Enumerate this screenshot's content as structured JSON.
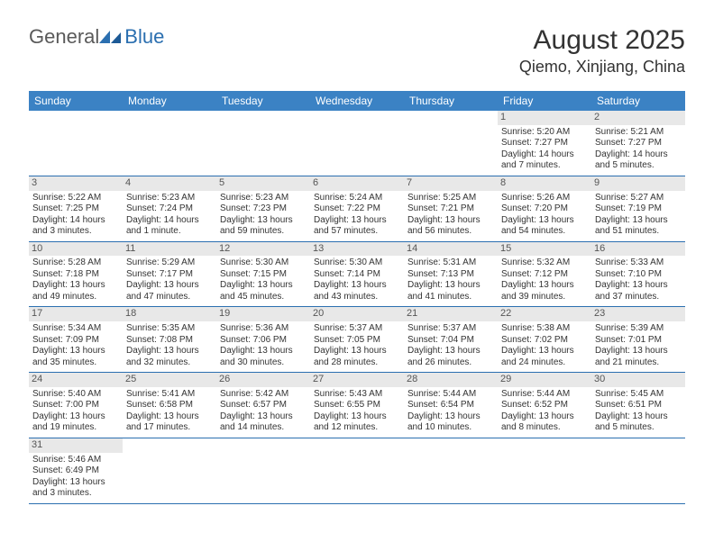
{
  "logo": {
    "text1": "General",
    "text2": "Blue"
  },
  "header": {
    "title": "August 2025",
    "location": "Qiemo, Xinjiang, China"
  },
  "colors": {
    "header_bg": "#3b82c4",
    "header_text": "#ffffff",
    "daynum_bg": "#e8e8e8",
    "border": "#2b6fb0",
    "logo_blue": "#2b6fb0"
  },
  "weekdays": [
    "Sunday",
    "Monday",
    "Tuesday",
    "Wednesday",
    "Thursday",
    "Friday",
    "Saturday"
  ],
  "weeks": [
    [
      null,
      null,
      null,
      null,
      null,
      {
        "n": "1",
        "sunrise": "Sunrise: 5:20 AM",
        "sunset": "Sunset: 7:27 PM",
        "daylight": "Daylight: 14 hours and 7 minutes."
      },
      {
        "n": "2",
        "sunrise": "Sunrise: 5:21 AM",
        "sunset": "Sunset: 7:27 PM",
        "daylight": "Daylight: 14 hours and 5 minutes."
      }
    ],
    [
      {
        "n": "3",
        "sunrise": "Sunrise: 5:22 AM",
        "sunset": "Sunset: 7:25 PM",
        "daylight": "Daylight: 14 hours and 3 minutes."
      },
      {
        "n": "4",
        "sunrise": "Sunrise: 5:23 AM",
        "sunset": "Sunset: 7:24 PM",
        "daylight": "Daylight: 14 hours and 1 minute."
      },
      {
        "n": "5",
        "sunrise": "Sunrise: 5:23 AM",
        "sunset": "Sunset: 7:23 PM",
        "daylight": "Daylight: 13 hours and 59 minutes."
      },
      {
        "n": "6",
        "sunrise": "Sunrise: 5:24 AM",
        "sunset": "Sunset: 7:22 PM",
        "daylight": "Daylight: 13 hours and 57 minutes."
      },
      {
        "n": "7",
        "sunrise": "Sunrise: 5:25 AM",
        "sunset": "Sunset: 7:21 PM",
        "daylight": "Daylight: 13 hours and 56 minutes."
      },
      {
        "n": "8",
        "sunrise": "Sunrise: 5:26 AM",
        "sunset": "Sunset: 7:20 PM",
        "daylight": "Daylight: 13 hours and 54 minutes."
      },
      {
        "n": "9",
        "sunrise": "Sunrise: 5:27 AM",
        "sunset": "Sunset: 7:19 PM",
        "daylight": "Daylight: 13 hours and 51 minutes."
      }
    ],
    [
      {
        "n": "10",
        "sunrise": "Sunrise: 5:28 AM",
        "sunset": "Sunset: 7:18 PM",
        "daylight": "Daylight: 13 hours and 49 minutes."
      },
      {
        "n": "11",
        "sunrise": "Sunrise: 5:29 AM",
        "sunset": "Sunset: 7:17 PM",
        "daylight": "Daylight: 13 hours and 47 minutes."
      },
      {
        "n": "12",
        "sunrise": "Sunrise: 5:30 AM",
        "sunset": "Sunset: 7:15 PM",
        "daylight": "Daylight: 13 hours and 45 minutes."
      },
      {
        "n": "13",
        "sunrise": "Sunrise: 5:30 AM",
        "sunset": "Sunset: 7:14 PM",
        "daylight": "Daylight: 13 hours and 43 minutes."
      },
      {
        "n": "14",
        "sunrise": "Sunrise: 5:31 AM",
        "sunset": "Sunset: 7:13 PM",
        "daylight": "Daylight: 13 hours and 41 minutes."
      },
      {
        "n": "15",
        "sunrise": "Sunrise: 5:32 AM",
        "sunset": "Sunset: 7:12 PM",
        "daylight": "Daylight: 13 hours and 39 minutes."
      },
      {
        "n": "16",
        "sunrise": "Sunrise: 5:33 AM",
        "sunset": "Sunset: 7:10 PM",
        "daylight": "Daylight: 13 hours and 37 minutes."
      }
    ],
    [
      {
        "n": "17",
        "sunrise": "Sunrise: 5:34 AM",
        "sunset": "Sunset: 7:09 PM",
        "daylight": "Daylight: 13 hours and 35 minutes."
      },
      {
        "n": "18",
        "sunrise": "Sunrise: 5:35 AM",
        "sunset": "Sunset: 7:08 PM",
        "daylight": "Daylight: 13 hours and 32 minutes."
      },
      {
        "n": "19",
        "sunrise": "Sunrise: 5:36 AM",
        "sunset": "Sunset: 7:06 PM",
        "daylight": "Daylight: 13 hours and 30 minutes."
      },
      {
        "n": "20",
        "sunrise": "Sunrise: 5:37 AM",
        "sunset": "Sunset: 7:05 PM",
        "daylight": "Daylight: 13 hours and 28 minutes."
      },
      {
        "n": "21",
        "sunrise": "Sunrise: 5:37 AM",
        "sunset": "Sunset: 7:04 PM",
        "daylight": "Daylight: 13 hours and 26 minutes."
      },
      {
        "n": "22",
        "sunrise": "Sunrise: 5:38 AM",
        "sunset": "Sunset: 7:02 PM",
        "daylight": "Daylight: 13 hours and 24 minutes."
      },
      {
        "n": "23",
        "sunrise": "Sunrise: 5:39 AM",
        "sunset": "Sunset: 7:01 PM",
        "daylight": "Daylight: 13 hours and 21 minutes."
      }
    ],
    [
      {
        "n": "24",
        "sunrise": "Sunrise: 5:40 AM",
        "sunset": "Sunset: 7:00 PM",
        "daylight": "Daylight: 13 hours and 19 minutes."
      },
      {
        "n": "25",
        "sunrise": "Sunrise: 5:41 AM",
        "sunset": "Sunset: 6:58 PM",
        "daylight": "Daylight: 13 hours and 17 minutes."
      },
      {
        "n": "26",
        "sunrise": "Sunrise: 5:42 AM",
        "sunset": "Sunset: 6:57 PM",
        "daylight": "Daylight: 13 hours and 14 minutes."
      },
      {
        "n": "27",
        "sunrise": "Sunrise: 5:43 AM",
        "sunset": "Sunset: 6:55 PM",
        "daylight": "Daylight: 13 hours and 12 minutes."
      },
      {
        "n": "28",
        "sunrise": "Sunrise: 5:44 AM",
        "sunset": "Sunset: 6:54 PM",
        "daylight": "Daylight: 13 hours and 10 minutes."
      },
      {
        "n": "29",
        "sunrise": "Sunrise: 5:44 AM",
        "sunset": "Sunset: 6:52 PM",
        "daylight": "Daylight: 13 hours and 8 minutes."
      },
      {
        "n": "30",
        "sunrise": "Sunrise: 5:45 AM",
        "sunset": "Sunset: 6:51 PM",
        "daylight": "Daylight: 13 hours and 5 minutes."
      }
    ],
    [
      {
        "n": "31",
        "sunrise": "Sunrise: 5:46 AM",
        "sunset": "Sunset: 6:49 PM",
        "daylight": "Daylight: 13 hours and 3 minutes."
      },
      null,
      null,
      null,
      null,
      null,
      null
    ]
  ]
}
